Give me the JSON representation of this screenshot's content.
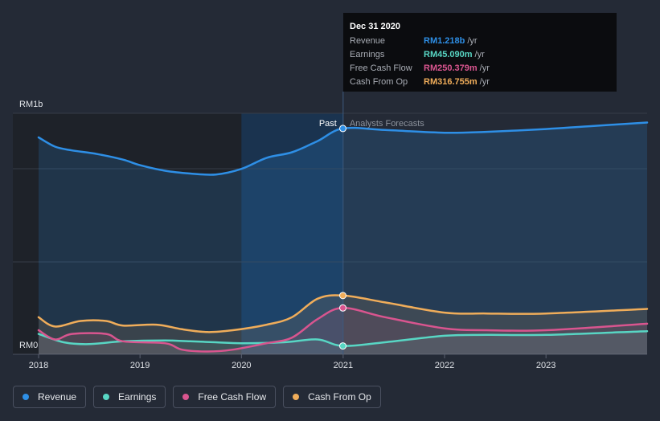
{
  "chart_data": {
    "type": "line",
    "x_axis": {
      "type": "time",
      "ticks": [
        "2018",
        "2019",
        "2020",
        "2021",
        "2022",
        "2023"
      ],
      "range": [
        "2018-01-01",
        "2023-12-31"
      ]
    },
    "y_axis": {
      "labels": [
        "RM1b",
        "RM0"
      ],
      "ylim": [
        0,
        1.3
      ],
      "unit": "RM billions"
    },
    "grid": true,
    "past_label": "Past",
    "forecast_label": "Analysts Forecasts",
    "split_date": "2021-01-01",
    "highlight_range": [
      "2020-01-01",
      "2021-01-01"
    ],
    "series": [
      {
        "name": "Revenue",
        "color": "#2e8fe6",
        "points": [
          [
            "2018-01-01",
            1.17
          ],
          [
            "2018-03-01",
            1.12
          ],
          [
            "2018-05-01",
            1.1
          ],
          [
            "2018-08-01",
            1.08
          ],
          [
            "2018-11-01",
            1.05
          ],
          [
            "2019-01-01",
            1.02
          ],
          [
            "2019-04-01",
            0.99
          ],
          [
            "2019-07-01",
            0.975
          ],
          [
            "2019-10-01",
            0.97
          ],
          [
            "2020-01-01",
            1.0
          ],
          [
            "2020-04-01",
            1.06
          ],
          [
            "2020-07-01",
            1.09
          ],
          [
            "2020-10-01",
            1.15
          ],
          [
            "2020-12-31",
            1.218
          ],
          [
            "2021-06-01",
            1.21
          ],
          [
            "2022-01-01",
            1.195
          ],
          [
            "2022-06-01",
            1.2
          ],
          [
            "2023-01-01",
            1.215
          ],
          [
            "2023-06-01",
            1.23
          ],
          [
            "2023-12-31",
            1.25
          ]
        ]
      },
      {
        "name": "Earnings",
        "color": "#58d6c4",
        "points": [
          [
            "2018-01-01",
            0.11
          ],
          [
            "2018-04-01",
            0.065
          ],
          [
            "2018-07-01",
            0.055
          ],
          [
            "2018-11-01",
            0.07
          ],
          [
            "2019-04-01",
            0.075
          ],
          [
            "2019-07-01",
            0.07
          ],
          [
            "2019-10-01",
            0.065
          ],
          [
            "2020-01-01",
            0.06
          ],
          [
            "2020-06-01",
            0.065
          ],
          [
            "2020-10-01",
            0.08
          ],
          [
            "2020-12-31",
            0.045
          ],
          [
            "2021-06-01",
            0.065
          ],
          [
            "2022-01-01",
            0.1
          ],
          [
            "2022-06-01",
            0.105
          ],
          [
            "2023-01-01",
            0.105
          ],
          [
            "2023-12-31",
            0.125
          ]
        ]
      },
      {
        "name": "Free Cash Flow",
        "color": "#d9558f",
        "points": [
          [
            "2018-01-01",
            0.13
          ],
          [
            "2018-03-01",
            0.08
          ],
          [
            "2018-05-01",
            0.11
          ],
          [
            "2018-09-01",
            0.11
          ],
          [
            "2018-11-01",
            0.07
          ],
          [
            "2019-04-01",
            0.06
          ],
          [
            "2019-06-01",
            0.025
          ],
          [
            "2019-09-01",
            0.015
          ],
          [
            "2019-12-01",
            0.025
          ],
          [
            "2020-04-01",
            0.06
          ],
          [
            "2020-07-01",
            0.09
          ],
          [
            "2020-10-01",
            0.19
          ],
          [
            "2020-12-31",
            0.25
          ],
          [
            "2021-06-01",
            0.2
          ],
          [
            "2022-01-01",
            0.14
          ],
          [
            "2022-06-01",
            0.13
          ],
          [
            "2023-01-01",
            0.13
          ],
          [
            "2023-12-31",
            0.165
          ]
        ]
      },
      {
        "name": "Cash From Op",
        "color": "#f0ad5a",
        "points": [
          [
            "2018-01-01",
            0.2
          ],
          [
            "2018-03-01",
            0.15
          ],
          [
            "2018-06-01",
            0.18
          ],
          [
            "2018-09-01",
            0.18
          ],
          [
            "2018-11-01",
            0.155
          ],
          [
            "2019-03-01",
            0.16
          ],
          [
            "2019-06-01",
            0.135
          ],
          [
            "2019-09-01",
            0.12
          ],
          [
            "2019-12-01",
            0.13
          ],
          [
            "2020-04-01",
            0.16
          ],
          [
            "2020-07-01",
            0.2
          ],
          [
            "2020-10-01",
            0.3
          ],
          [
            "2020-12-31",
            0.317
          ],
          [
            "2021-06-01",
            0.28
          ],
          [
            "2022-01-01",
            0.225
          ],
          [
            "2022-06-01",
            0.22
          ],
          [
            "2023-01-01",
            0.22
          ],
          [
            "2023-12-31",
            0.245
          ]
        ]
      }
    ],
    "tooltip": {
      "date": "Dec 31 2020",
      "rows": [
        {
          "label": "Revenue",
          "value": "RM1.218b",
          "unit": "/yr",
          "color": "#2e8fe6"
        },
        {
          "label": "Earnings",
          "value": "RM45.090m",
          "unit": "/yr",
          "color": "#58d6c4"
        },
        {
          "label": "Free Cash Flow",
          "value": "RM250.379m",
          "unit": "/yr",
          "color": "#d9558f"
        },
        {
          "label": "Cash From Op",
          "value": "RM316.755m",
          "unit": "/yr",
          "color": "#f0ad5a"
        }
      ]
    }
  },
  "legend": [
    {
      "label": "Revenue",
      "color": "#2e8fe6"
    },
    {
      "label": "Earnings",
      "color": "#58d6c4"
    },
    {
      "label": "Free Cash Flow",
      "color": "#d9558f"
    },
    {
      "label": "Cash From Op",
      "color": "#f0ad5a"
    }
  ]
}
